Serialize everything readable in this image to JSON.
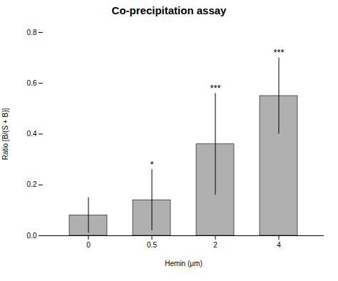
{
  "chart_data": {
    "type": "bar",
    "title": "Co-precipitation assay",
    "categories": [
      "0",
      "0.5",
      "2",
      "4"
    ],
    "values": [
      0.08,
      0.14,
      0.36,
      0.55
    ],
    "errors": [
      0.07,
      0.12,
      0.2,
      0.15
    ],
    "color": "#b0b0b0",
    "xlabel": "Hemin (μm)",
    "ylabel": "Ratio [B/(S + B)]",
    "ylim": [
      0.0,
      0.8
    ],
    "yticks": [
      {
        "value": 0.0,
        "label": "0.0"
      },
      0.2,
      0.4,
      0.6,
      0.8
    ],
    "annotations": [
      {
        "x": "0.5",
        "text": "*"
      },
      {
        "x": "2",
        "text": "***"
      },
      {
        "x": "4",
        "text": "***"
      }
    ],
    "grid": false
  }
}
